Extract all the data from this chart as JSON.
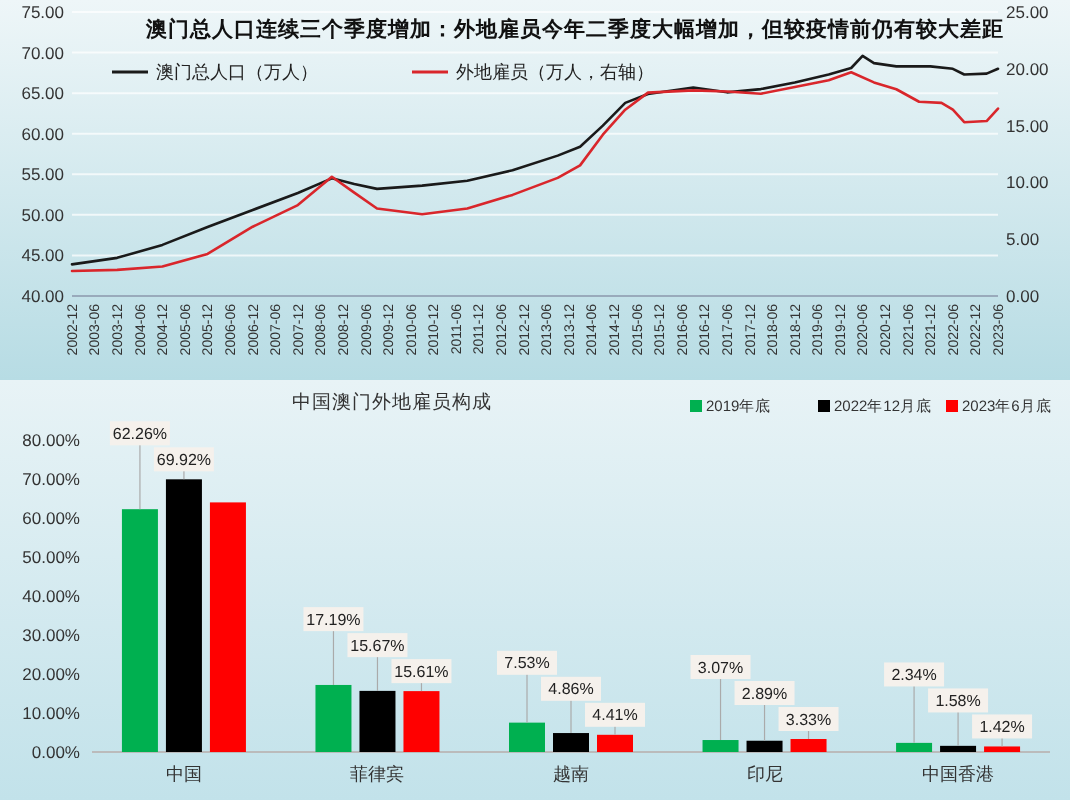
{
  "chart_data": [
    {
      "type": "line",
      "title": "澳门总人口连续三个季度增加：外地雇员今年二季度大幅增加，但较疫情前仍有较大差距",
      "series": [
        {
          "name": "澳门总人口（万人）",
          "color": "#1a1a1a",
          "x": [
            "2002-12",
            "2003-12",
            "2004-12",
            "2005-12",
            "2006-12",
            "2007-12",
            "2008-09",
            "2009-03",
            "2009-09",
            "2010-09",
            "2011-09",
            "2012-09",
            "2013-09",
            "2014-03",
            "2014-09",
            "2015-03",
            "2015-09",
            "2016-09",
            "2017-06",
            "2018-03",
            "2018-12",
            "2019-09",
            "2020-03",
            "2020-06",
            "2020-09",
            "2021-03",
            "2021-12",
            "2022-06",
            "2022-09",
            "2023-03",
            "2023-06"
          ],
          "values": [
            43.9,
            44.7,
            46.3,
            48.5,
            50.6,
            52.7,
            54.5,
            53.8,
            53.2,
            53.6,
            54.2,
            55.5,
            57.3,
            58.4,
            61.0,
            63.8,
            64.9,
            65.7,
            65.1,
            65.5,
            66.3,
            67.3,
            68.1,
            69.6,
            68.7,
            68.3,
            68.3,
            68.0,
            67.3,
            67.4,
            68.0
          ]
        },
        {
          "name": "外地雇员（万人，右轴）",
          "color": "#d9262b",
          "axis": "y2",
          "x": [
            "2002-12",
            "2003-12",
            "2004-12",
            "2005-12",
            "2006-12",
            "2007-12",
            "2008-09",
            "2009-03",
            "2009-09",
            "2010-09",
            "2011-09",
            "2012-09",
            "2013-09",
            "2014-03",
            "2014-09",
            "2015-03",
            "2015-09",
            "2016-09",
            "2017-06",
            "2018-03",
            "2018-12",
            "2019-09",
            "2020-03",
            "2020-09",
            "2021-03",
            "2021-09",
            "2022-03",
            "2022-06",
            "2022-09",
            "2023-03",
            "2023-06"
          ],
          "values": [
            2.2,
            2.3,
            2.6,
            3.7,
            6.1,
            8.0,
            10.5,
            9.1,
            7.7,
            7.2,
            7.7,
            8.9,
            10.4,
            11.5,
            14.2,
            16.4,
            17.9,
            18.1,
            18.0,
            17.8,
            18.4,
            19.0,
            19.7,
            18.8,
            18.2,
            17.1,
            17.0,
            16.4,
            15.3,
            15.4,
            16.5
          ]
        }
      ],
      "xlim": [
        "2002-12",
        "2023-06"
      ],
      "xticks": [
        "2002-12",
        "2003-06",
        "2003-12",
        "2004-06",
        "2004-12",
        "2005-06",
        "2005-12",
        "2006-06",
        "2006-12",
        "2007-06",
        "2007-12",
        "2008-06",
        "2008-12",
        "2009-06",
        "2009-12",
        "2010-06",
        "2010-12",
        "2011-06",
        "2011-12",
        "2012-06",
        "2012-12",
        "2013-06",
        "2013-12",
        "2014-06",
        "2014-12",
        "2015-06",
        "2015-12",
        "2016-06",
        "2016-12",
        "2017-06",
        "2017-12",
        "2018-06",
        "2018-12",
        "2019-06",
        "2019-12",
        "2020-06",
        "2020-12",
        "2021-06",
        "2021-12",
        "2022-06",
        "2022-12",
        "2023-06"
      ],
      "ylim": [
        40,
        75
      ],
      "yticks": [
        {
          "value": 40,
          "label": "40.00"
        },
        {
          "value": 45,
          "label": "45.00"
        },
        {
          "value": 50,
          "label": "50.00"
        },
        {
          "value": 55,
          "label": "55.00"
        },
        {
          "value": 60,
          "label": "60.00"
        },
        {
          "value": 65,
          "label": "65.00"
        },
        {
          "value": 70,
          "label": "70.00"
        },
        {
          "value": 75,
          "label": "75.00"
        }
      ],
      "y2lim": [
        0,
        25
      ],
      "y2ticks": [
        {
          "value": 0,
          "label": "0.00"
        },
        {
          "value": 5,
          "label": "5.00"
        },
        {
          "value": 10,
          "label": "10.00"
        },
        {
          "value": 15,
          "label": "15.00"
        },
        {
          "value": 20,
          "label": "20.00"
        },
        {
          "value": 25,
          "label": "25.00"
        }
      ],
      "grid": "y",
      "legend": "top"
    },
    {
      "type": "bar",
      "title": "中国澳门外地雇员构成",
      "categories": [
        "中国",
        "菲律宾",
        "越南",
        "印尼",
        "中国香港"
      ],
      "series": [
        {
          "name": "2019年底",
          "color": "#00b050",
          "values": [
            62.26,
            17.19,
            7.53,
            3.07,
            2.34
          ],
          "value_labels": [
            "62.26%",
            "17.19%",
            "7.53%",
            "3.07%",
            "2.34%"
          ]
        },
        {
          "name": "2022年12月底",
          "color": "#000000",
          "values": [
            69.92,
            15.67,
            4.86,
            2.89,
            1.58
          ],
          "value_labels": [
            "69.92%",
            "15.67%",
            "4.86%",
            "2.89%",
            "1.58%"
          ]
        },
        {
          "name": "2023年6月底",
          "color": "#ff0000",
          "values": [
            64,
            15.61,
            4.41,
            3.33,
            1.42
          ],
          "value_labels": [
            null,
            "15.61%",
            "4.41%",
            "3.33%",
            "1.42%"
          ]
        }
      ],
      "ylim": [
        0,
        80
      ],
      "yticks": [
        {
          "value": 0,
          "label": "0.00%"
        },
        {
          "value": 10,
          "label": "10.00%"
        },
        {
          "value": 20,
          "label": "20.00%"
        },
        {
          "value": 30,
          "label": "30.00%"
        },
        {
          "value": 40,
          "label": "40.00%"
        },
        {
          "value": 50,
          "label": "50.00%"
        },
        {
          "value": 60,
          "label": "60.00%"
        },
        {
          "value": 70,
          "label": "70.00%"
        },
        {
          "value": 80,
          "label": "80.00%"
        }
      ],
      "legend": "top right"
    }
  ]
}
